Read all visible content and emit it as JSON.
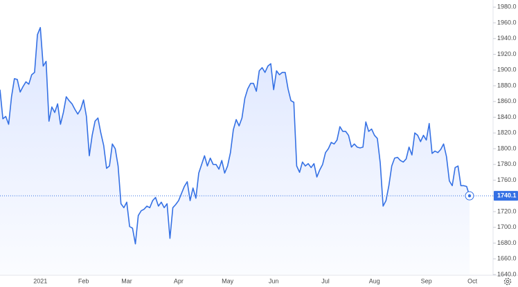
{
  "chart_data": {
    "type": "line",
    "color": "#3470e4",
    "categories": [
      null,
      null,
      null,
      null,
      null,
      null,
      null,
      null,
      null,
      null,
      null,
      null,
      null,
      null,
      "2021",
      null,
      null,
      null,
      null,
      null,
      null,
      null,
      null,
      null,
      null,
      null,
      null,
      null,
      null,
      "Feb",
      null,
      null,
      null,
      null,
      null,
      null,
      null,
      null,
      null,
      null,
      null,
      null,
      null,
      null,
      "Mar",
      null,
      null,
      null,
      null,
      null,
      null,
      null,
      null,
      null,
      null,
      null,
      null,
      null,
      null,
      null,
      null,
      null,
      "Apr",
      null,
      null,
      null,
      null,
      null,
      null,
      null,
      null,
      null,
      null,
      null,
      null,
      null,
      null,
      null,
      null,
      "May",
      null,
      null,
      null,
      null,
      null,
      null,
      null,
      null,
      null,
      null,
      null,
      null,
      null,
      null,
      null,
      "Jun",
      null,
      null,
      null,
      null,
      null,
      null,
      null,
      null,
      null,
      null,
      null,
      null,
      null,
      null,
      null,
      null,
      null,
      "Jul",
      null,
      null,
      null,
      null,
      null,
      null,
      null,
      null,
      null,
      null,
      null,
      null,
      null,
      null,
      null,
      null,
      "Aug",
      null,
      null,
      null,
      null,
      null,
      null,
      null,
      null,
      null,
      null,
      null,
      null,
      null,
      null,
      null,
      null,
      null,
      "Sep",
      null,
      null,
      null,
      null,
      null,
      null,
      null,
      null,
      null,
      null,
      null,
      null,
      null,
      null,
      null,
      "Oct"
    ],
    "values": [
      1875,
      1838,
      1841,
      1831,
      1866,
      1889,
      1888,
      1872,
      1879,
      1885,
      1882,
      1894,
      1897,
      1945,
      1954,
      1905,
      1911,
      1835,
      1853,
      1846,
      1857,
      1831,
      1846,
      1866,
      1861,
      1857,
      1850,
      1844,
      1850,
      1862,
      1841,
      1791,
      1817,
      1835,
      1839,
      1820,
      1804,
      1775,
      1778,
      1806,
      1800,
      1778,
      1730,
      1725,
      1732,
      1701,
      1699,
      1679,
      1715,
      1721,
      1723,
      1727,
      1725,
      1734,
      1738,
      1727,
      1732,
      1725,
      1730,
      1686,
      1725,
      1729,
      1734,
      1743,
      1752,
      1758,
      1734,
      1750,
      1737,
      1769,
      1780,
      1791,
      1778,
      1788,
      1780,
      1780,
      1774,
      1785,
      1769,
      1778,
      1795,
      1824,
      1837,
      1829,
      1839,
      1864,
      1876,
      1883,
      1883,
      1873,
      1899,
      1903,
      1897,
      1905,
      1908,
      1875,
      1899,
      1894,
      1897,
      1897,
      1876,
      1861,
      1859,
      1778,
      1770,
      1783,
      1778,
      1781,
      1776,
      1781,
      1764,
      1773,
      1780,
      1795,
      1800,
      1808,
      1806,
      1811,
      1828,
      1822,
      1822,
      1817,
      1802,
      1806,
      1802,
      1801,
      1802,
      1834,
      1822,
      1825,
      1817,
      1813,
      1782,
      1727,
      1734,
      1753,
      1778,
      1788,
      1789,
      1785,
      1783,
      1787,
      1802,
      1792,
      1820,
      1817,
      1809,
      1817,
      1811,
      1832,
      1794,
      1797,
      1795,
      1799,
      1806,
      1790,
      1759,
      1753,
      1776,
      1778,
      1753,
      1753,
      1752,
      1740.1,
      null
    ],
    "last_price": 1740.1,
    "ylim": [
      1640,
      1989
    ],
    "yticks": [
      {
        "value": 1640,
        "label": "1640.0"
      },
      {
        "value": 1660,
        "label": "1660.0"
      },
      {
        "value": 1680,
        "label": "1680.0"
      },
      {
        "value": 1700,
        "label": "1700.0"
      },
      {
        "value": 1720,
        "label": "1720.0"
      },
      {
        "value": 1740,
        "label": "1740.0"
      },
      {
        "value": 1760,
        "label": "1760.0"
      },
      {
        "value": 1780,
        "label": "1780.0"
      },
      {
        "value": 1800,
        "label": "1800.0"
      },
      {
        "value": 1820,
        "label": "1820.0"
      },
      {
        "value": 1840,
        "label": "1840.0"
      },
      {
        "value": 1860,
        "label": "1860.0"
      },
      {
        "value": 1880,
        "label": "1880.0"
      },
      {
        "value": 1900,
        "label": "1900.0"
      },
      {
        "value": 1920,
        "label": "1920.0"
      },
      {
        "value": 1940,
        "label": "1940.0"
      },
      {
        "value": 1960,
        "label": "1960.0"
      },
      {
        "value": 1980,
        "label": "1980.0"
      }
    ],
    "grid": false
  }
}
